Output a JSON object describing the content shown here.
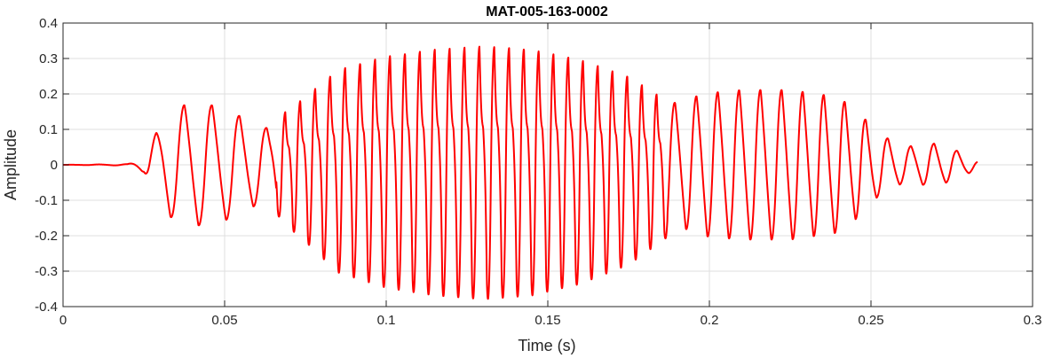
{
  "chart_data": {
    "type": "line",
    "title": "MAT-005-163-0002",
    "xlabel": "Time (s)",
    "ylabel": "Amplitude",
    "xlim": [
      0,
      0.3
    ],
    "ylim": [
      -0.4,
      0.4
    ],
    "x_ticks": [
      0,
      0.05,
      0.1,
      0.15,
      0.2,
      0.25,
      0.3
    ],
    "x_tick_labels": [
      "0",
      "0.05",
      "0.1",
      "0.15",
      "0.2",
      "0.25",
      "0.3"
    ],
    "y_ticks": [
      -0.4,
      -0.3,
      -0.2,
      -0.1,
      0,
      0.1,
      0.2,
      0.3,
      0.4
    ],
    "y_tick_labels": [
      "-0.4",
      "-0.3",
      "-0.2",
      "-0.1",
      "0",
      "0.1",
      "0.2",
      "0.3",
      "0.4"
    ],
    "grid": true,
    "legend": false,
    "series": [
      {
        "color": "#ff0000",
        "x_start": 0,
        "x_end": 0.283,
        "description_points": "waveform envelope (approximate peak amplitude over time)",
        "envelope": [
          [
            0.0,
            0.0
          ],
          [
            0.02,
            0.002
          ],
          [
            0.025,
            0.02
          ],
          [
            0.027,
            0.06
          ],
          [
            0.032,
            0.14
          ],
          [
            0.038,
            0.17
          ],
          [
            0.045,
            0.17
          ],
          [
            0.052,
            0.15
          ],
          [
            0.058,
            0.12
          ],
          [
            0.064,
            0.1
          ],
          [
            0.068,
            0.15
          ],
          [
            0.075,
            0.2
          ],
          [
            0.085,
            0.28
          ],
          [
            0.1,
            0.32
          ],
          [
            0.115,
            0.34
          ],
          [
            0.13,
            0.35
          ],
          [
            0.145,
            0.34
          ],
          [
            0.16,
            0.31
          ],
          [
            0.175,
            0.26
          ],
          [
            0.185,
            0.2
          ],
          [
            0.19,
            0.17
          ],
          [
            0.198,
            0.2
          ],
          [
            0.21,
            0.21
          ],
          [
            0.225,
            0.21
          ],
          [
            0.24,
            0.19
          ],
          [
            0.247,
            0.14
          ],
          [
            0.252,
            0.09
          ],
          [
            0.26,
            0.05
          ],
          [
            0.27,
            0.06
          ],
          [
            0.278,
            0.035
          ],
          [
            0.283,
            0.01
          ]
        ],
        "frequency_profile": [
          [
            0.0,
            110
          ],
          [
            0.065,
            120
          ],
          [
            0.067,
            215
          ],
          [
            0.185,
            220
          ],
          [
            0.188,
            150
          ],
          [
            0.25,
            155
          ],
          [
            0.252,
            140
          ],
          [
            0.283,
            140
          ]
        ]
      }
    ]
  }
}
